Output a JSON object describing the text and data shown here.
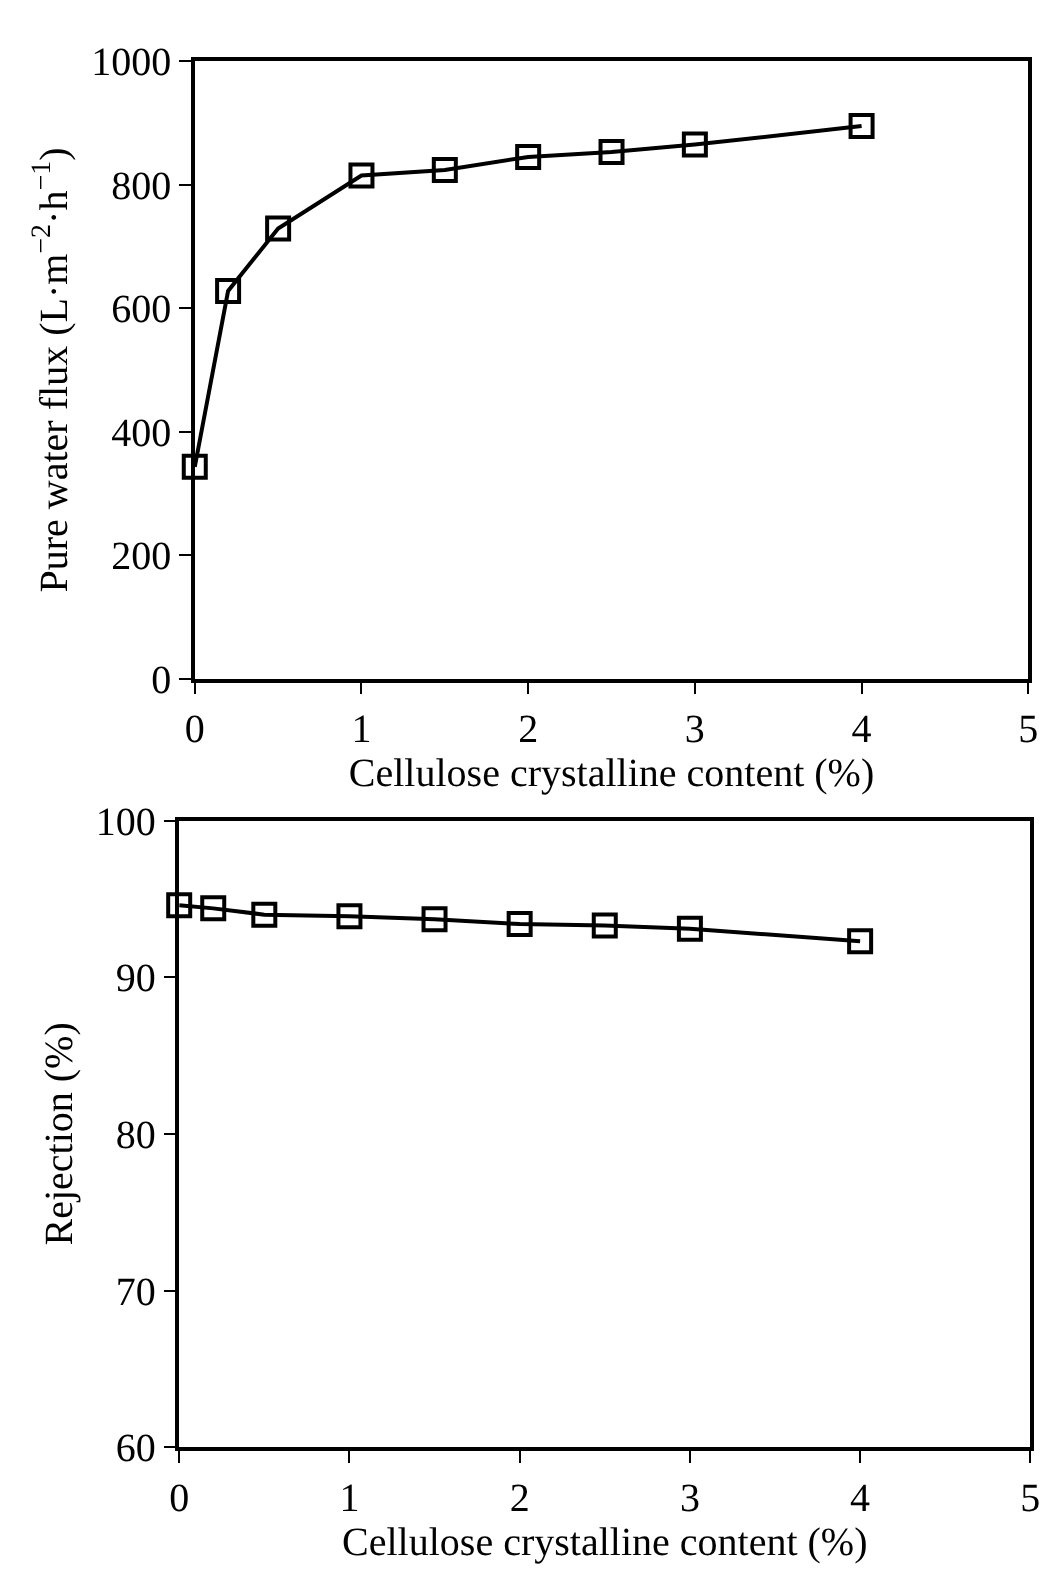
{
  "chart_data": [
    {
      "type": "line",
      "xlabel": "Cellulose crystalline content (%)",
      "ylabel": "Pure water flux (L·m$^{−2}$·h$^{−1}$)",
      "x": [
        0,
        0.2,
        0.5,
        1,
        1.5,
        2,
        2.5,
        3,
        4
      ],
      "series": [
        {
          "color": "#000000",
          "values": [
            343,
            628,
            729,
            815,
            824,
            845,
            853,
            865,
            895
          ]
        }
      ],
      "xlim": [
        0,
        5
      ],
      "xticks": [
        0,
        1,
        2,
        3,
        4,
        5
      ],
      "ylim": [
        0,
        1000
      ],
      "yticks": [
        0,
        200,
        400,
        600,
        800,
        1000
      ],
      "marker": "square",
      "line_style": "solid"
    },
    {
      "type": "line",
      "xlabel": "Cellulose crystalline content (%)",
      "ylabel": "Rejection (%)",
      "x": [
        0,
        0.2,
        0.5,
        1,
        1.5,
        2,
        2.5,
        3,
        4
      ],
      "series": [
        {
          "color": "#000000",
          "values": [
            94.6,
            94.4,
            94.0,
            93.9,
            93.7,
            93.4,
            93.3,
            93.1,
            92.3
          ]
        }
      ],
      "xlim": [
        0,
        5
      ],
      "xticks": [
        0,
        1,
        2,
        3,
        4,
        5
      ],
      "ylim": [
        60,
        100
      ],
      "yticks": [
        60,
        70,
        80,
        90,
        100
      ],
      "marker": "square",
      "line_style": "solid"
    }
  ]
}
